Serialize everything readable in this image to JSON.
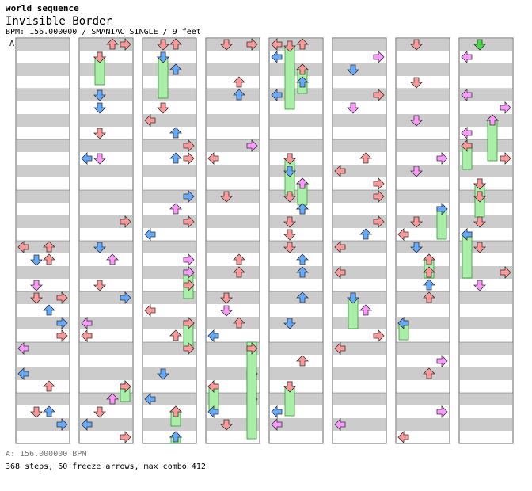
{
  "header": {
    "artist": "world sequence",
    "title": "Invisible Border",
    "meta": "BPM: 156.000000 / SMANIAC SINGLE / 9 feet"
  },
  "marker": {
    "label": "A"
  },
  "footer": {
    "bpm_line": "A: 156.000000 BPM",
    "stats_line": "368 steps, 60 freeze arrows, max combo 412"
  },
  "chart_data": {
    "type": "step-chart",
    "columns": 8,
    "measures_per_column": 8,
    "lanes": [
      "left",
      "down",
      "up",
      "right"
    ],
    "total_steps": 368,
    "freeze_arrows": 60,
    "max_combo": 412,
    "bpm": 156,
    "colors": {
      "quarter": "#ff9999",
      "eighth": "#66aaff",
      "sixteenth": "#ff99ff",
      "freeze": "#aaeeaa",
      "stripe": "#cccccc",
      "outline": "#333333"
    },
    "arrow_samples": [
      {
        "col": 0,
        "measure": 4,
        "lane": 0,
        "beat": 0,
        "color": "red"
      },
      {
        "col": 0,
        "measure": 4,
        "lane": 1,
        "beat": 1,
        "color": "blue"
      },
      {
        "col": 0,
        "measure": 5,
        "lane": 3,
        "beat": 0,
        "color": "red"
      },
      {
        "col": 0,
        "measure": 6,
        "lane": 0,
        "beat": 0,
        "color": "pink"
      },
      {
        "col": 0,
        "measure": 7,
        "lane": 2,
        "beat": 1,
        "color": "blue"
      },
      {
        "col": 1,
        "measure": 0,
        "lane": 2,
        "beat": 0,
        "color": "red"
      },
      {
        "col": 1,
        "measure": 1,
        "lane": 1,
        "beat": 0,
        "color": "blue"
      },
      {
        "col": 1,
        "measure": 2,
        "lane": 0,
        "beat": 1,
        "color": "blue"
      },
      {
        "col": 1,
        "measure": 3,
        "lane": 3,
        "beat": 2,
        "color": "red"
      },
      {
        "col": 2,
        "measure": 0,
        "lane": 1,
        "beat": 0,
        "color": "red"
      },
      {
        "col": 2,
        "measure": 2,
        "lane": 2,
        "beat": 1,
        "color": "blue"
      },
      {
        "col": 3,
        "measure": 0,
        "lane": 3,
        "beat": 0,
        "color": "red"
      },
      {
        "col": 3,
        "measure": 4,
        "lane": 2,
        "beat": 2,
        "color": "red"
      },
      {
        "col": 4,
        "measure": 0,
        "lane": 0,
        "beat": 0,
        "color": "red"
      },
      {
        "col": 4,
        "measure": 3,
        "lane": 2,
        "beat": 1,
        "color": "blue"
      },
      {
        "col": 5,
        "measure": 1,
        "lane": 3,
        "beat": 0,
        "color": "red"
      },
      {
        "col": 6,
        "measure": 2,
        "lane": 1,
        "beat": 2,
        "color": "pink"
      },
      {
        "col": 7,
        "measure": 0,
        "lane": 1,
        "beat": 0,
        "color": "green"
      }
    ]
  }
}
